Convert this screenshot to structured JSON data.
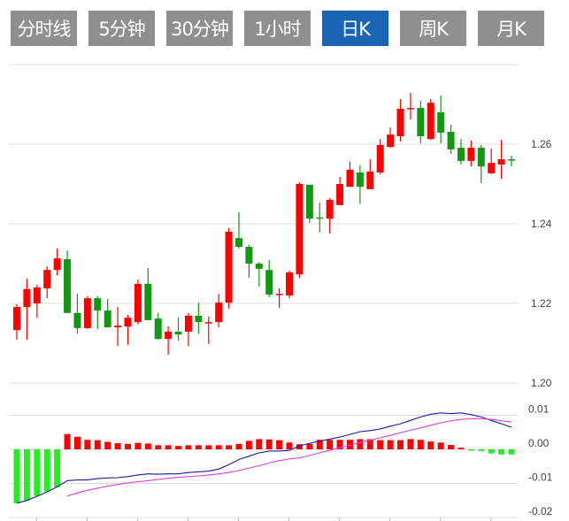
{
  "tabs": [
    {
      "label": "分时线",
      "active": false
    },
    {
      "label": "5分钟",
      "active": false
    },
    {
      "label": "30分钟",
      "active": false
    },
    {
      "label": "1小时",
      "active": false
    },
    {
      "label": "日K",
      "active": true
    },
    {
      "label": "周K",
      "active": false
    },
    {
      "label": "月K",
      "active": false
    }
  ],
  "colors": {
    "active_tab": "#1a64b2",
    "tab": "#8f8f8f",
    "up": "#ff0000",
    "down": "#119911",
    "hist_down": "#22ee22",
    "dif": "#1a1aa8",
    "dea": "#e040e0"
  },
  "chart_data": [
    {
      "type": "candlestick",
      "ylim": [
        1.2,
        1.28
      ],
      "y_ticks": [
        "1.26",
        "1.24",
        "1.22",
        "1.20"
      ],
      "y_tick_values": [
        1.26,
        1.24,
        1.22,
        1.2
      ],
      "ohlc": [
        [
          1.2133,
          1.2198,
          1.2109,
          1.2191
        ],
        [
          1.2191,
          1.2262,
          1.2109,
          1.2236
        ],
        [
          1.22,
          1.2247,
          1.2164,
          1.224
        ],
        [
          1.2238,
          1.2293,
          1.2213,
          1.2284
        ],
        [
          1.2284,
          1.2338,
          1.2271,
          1.2313
        ],
        [
          1.2311,
          1.2333,
          1.2176,
          1.2176
        ],
        [
          1.2176,
          1.2224,
          1.2124,
          1.2138
        ],
        [
          1.2138,
          1.2218,
          1.2136,
          1.2213
        ],
        [
          1.2213,
          1.2218,
          1.2136,
          1.2182
        ],
        [
          1.2182,
          1.2211,
          1.214,
          1.214
        ],
        [
          1.214,
          1.2191,
          1.2093,
          1.2144
        ],
        [
          1.2142,
          1.2171,
          1.2096,
          1.2164
        ],
        [
          1.2153,
          1.226,
          1.2147,
          1.2249
        ],
        [
          1.2249,
          1.2289,
          1.2158,
          1.2158
        ],
        [
          1.2162,
          1.2176,
          1.2109,
          1.2111
        ],
        [
          1.2111,
          1.2142,
          1.2071,
          1.2129
        ],
        [
          1.2129,
          1.2164,
          1.2107,
          1.2122
        ],
        [
          1.2129,
          1.2176,
          1.2093,
          1.2169
        ],
        [
          1.2169,
          1.2202,
          1.2124,
          1.2153
        ],
        [
          1.2151,
          1.2167,
          1.2098,
          1.2153
        ],
        [
          1.2153,
          1.2224,
          1.214,
          1.2202
        ],
        [
          1.2202,
          1.2389,
          1.2187,
          1.238
        ],
        [
          1.2364,
          1.2429,
          1.2338,
          1.2342
        ],
        [
          1.2342,
          1.2347,
          1.2264,
          1.23
        ],
        [
          1.23,
          1.2304,
          1.2242,
          1.2287
        ],
        [
          1.2284,
          1.2309,
          1.2216,
          1.2222
        ],
        [
          1.2222,
          1.2238,
          1.2189,
          1.2224
        ],
        [
          1.222,
          1.2282,
          1.2213,
          1.2278
        ],
        [
          1.2273,
          1.2504,
          1.2264,
          1.25
        ],
        [
          1.2498,
          1.2498,
          1.2402,
          1.2413
        ],
        [
          1.2416,
          1.2453,
          1.2378,
          1.2413
        ],
        [
          1.2413,
          1.2464,
          1.2376,
          1.246
        ],
        [
          1.2447,
          1.2518,
          1.2447,
          1.25
        ],
        [
          1.2493,
          1.2556,
          1.2493,
          1.2536
        ],
        [
          1.2529,
          1.2547,
          1.2451,
          1.2493
        ],
        [
          1.2487,
          1.2562,
          1.2487,
          1.2531
        ],
        [
          1.2529,
          1.2613,
          1.2524,
          1.2598
        ],
        [
          1.2593,
          1.2642,
          1.2591,
          1.2624
        ],
        [
          1.262,
          1.2713,
          1.2607,
          1.2689
        ],
        [
          1.2689,
          1.2729,
          1.2662,
          1.2691
        ],
        [
          1.2691,
          1.2709,
          1.2602,
          1.262
        ],
        [
          1.2613,
          1.2713,
          1.2611,
          1.2704
        ],
        [
          1.268,
          1.2722,
          1.2602,
          1.2629
        ],
        [
          1.2631,
          1.2649,
          1.2576,
          1.2587
        ],
        [
          1.2591,
          1.2613,
          1.2549,
          1.2558
        ],
        [
          1.2558,
          1.2609,
          1.2544,
          1.2591
        ],
        [
          1.2591,
          1.2598,
          1.2502,
          1.2544
        ],
        [
          1.2527,
          1.2589,
          1.2524,
          1.2553
        ],
        [
          1.2549,
          1.2611,
          1.2513,
          1.2562
        ],
        [
          1.2562,
          1.2571,
          1.2544,
          1.256
        ]
      ]
    },
    {
      "type": "macd",
      "ylim": [
        -0.02,
        0.01
      ],
      "y_ticks": [
        "0.01",
        "0.00",
        "-0.01",
        "-0.02"
      ],
      "y_tick_values": [
        0.01,
        0.0,
        -0.01,
        -0.02
      ],
      "histogram": [
        -0.0158,
        -0.015,
        -0.0137,
        -0.0124,
        -0.0111,
        0.0045,
        0.0037,
        0.0028,
        0.0027,
        0.0022,
        0.0018,
        0.0016,
        0.0019,
        0.0017,
        0.0012,
        0.0012,
        0.001,
        0.0012,
        0.0012,
        0.0012,
        0.0012,
        0.0012,
        0.0016,
        0.0025,
        0.003,
        0.0029,
        0.0027,
        0.002,
        0.0015,
        0.0016,
        0.0028,
        0.0028,
        0.0028,
        0.0028,
        0.003,
        0.003,
        0.0027,
        0.0027,
        0.0027,
        0.003,
        0.0028,
        0.0023,
        0.002,
        0.0013,
        0.0005,
        -0.0003,
        -0.0005,
        -0.0012,
        -0.0015,
        -0.0015
      ],
      "dif": [
        -0.0158,
        -0.015,
        -0.0138,
        -0.0125,
        -0.011,
        -0.0092,
        -0.009,
        -0.009,
        -0.0086,
        -0.0084,
        -0.0083,
        -0.008,
        -0.0075,
        -0.0072,
        -0.0073,
        -0.0072,
        -0.0072,
        -0.0068,
        -0.0066,
        -0.0064,
        -0.0058,
        -0.0045,
        -0.003,
        -0.002,
        -0.001,
        -0.0005,
        -0.0005,
        -0.0003,
        0.001,
        0.0018,
        0.0024,
        0.003,
        0.0036,
        0.0044,
        0.0052,
        0.0055,
        0.006,
        0.0068,
        0.0075,
        0.0085,
        0.0095,
        0.0103,
        0.0107,
        0.0105,
        0.0107,
        0.0102,
        0.0095,
        0.0085,
        0.0075,
        0.0065
      ],
      "dea": [
        null,
        null,
        null,
        null,
        null,
        -0.0137,
        -0.0128,
        -0.012,
        -0.0114,
        -0.0108,
        -0.0103,
        -0.0099,
        -0.0095,
        -0.0092,
        -0.0088,
        -0.0085,
        -0.0082,
        -0.008,
        -0.0078,
        -0.0075,
        -0.0072,
        -0.0068,
        -0.0062,
        -0.0055,
        -0.0048,
        -0.004,
        -0.0033,
        -0.0028,
        -0.0025,
        -0.0018,
        -0.001,
        -0.0003,
        0.0005,
        0.0012,
        0.002,
        0.0027,
        0.0034,
        0.0041,
        0.0049,
        0.0056,
        0.0063,
        0.0071,
        0.0078,
        0.0084,
        0.0088,
        0.009,
        0.009,
        0.0088,
        0.0084,
        0.008
      ]
    }
  ]
}
